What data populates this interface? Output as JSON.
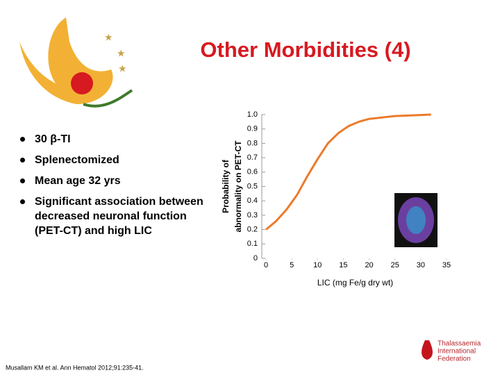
{
  "title": "Other Morbidities (4)",
  "bullets": [
    "30 β-TI",
    "Splenectomized",
    "Mean age 32 yrs",
    "Significant association between decreased neuronal function (PET-CT) and high LIC"
  ],
  "citation": "Musallam KM et al. Ann Hematol 2012;91:235-41.",
  "logo": [
    "Thalassaemia",
    "International",
    "Federation"
  ],
  "chart_data": {
    "type": "line",
    "x": [
      0,
      2,
      4,
      6,
      8,
      10,
      12,
      14,
      16,
      18,
      20,
      25,
      32
    ],
    "values": [
      0.2,
      0.26,
      0.34,
      0.44,
      0.57,
      0.69,
      0.8,
      0.87,
      0.92,
      0.95,
      0.97,
      0.99,
      1.0
    ],
    "color": "#ec7a2a",
    "xlim": [
      0,
      35
    ],
    "xticks": [
      0,
      5,
      10,
      15,
      20,
      25,
      30,
      35
    ],
    "ylim": [
      0,
      1
    ],
    "yticks": [
      0,
      0.1,
      0.2,
      0.3,
      0.4,
      0.5,
      0.6,
      0.7,
      0.8,
      0.9,
      {
        "value": 1,
        "label": "1.0"
      }
    ],
    "xlabel": "LIC (mg Fe/g dry wt)",
    "ylabel": [
      "Probability of",
      "abnormality on PET-CT"
    ],
    "grid": false
  }
}
